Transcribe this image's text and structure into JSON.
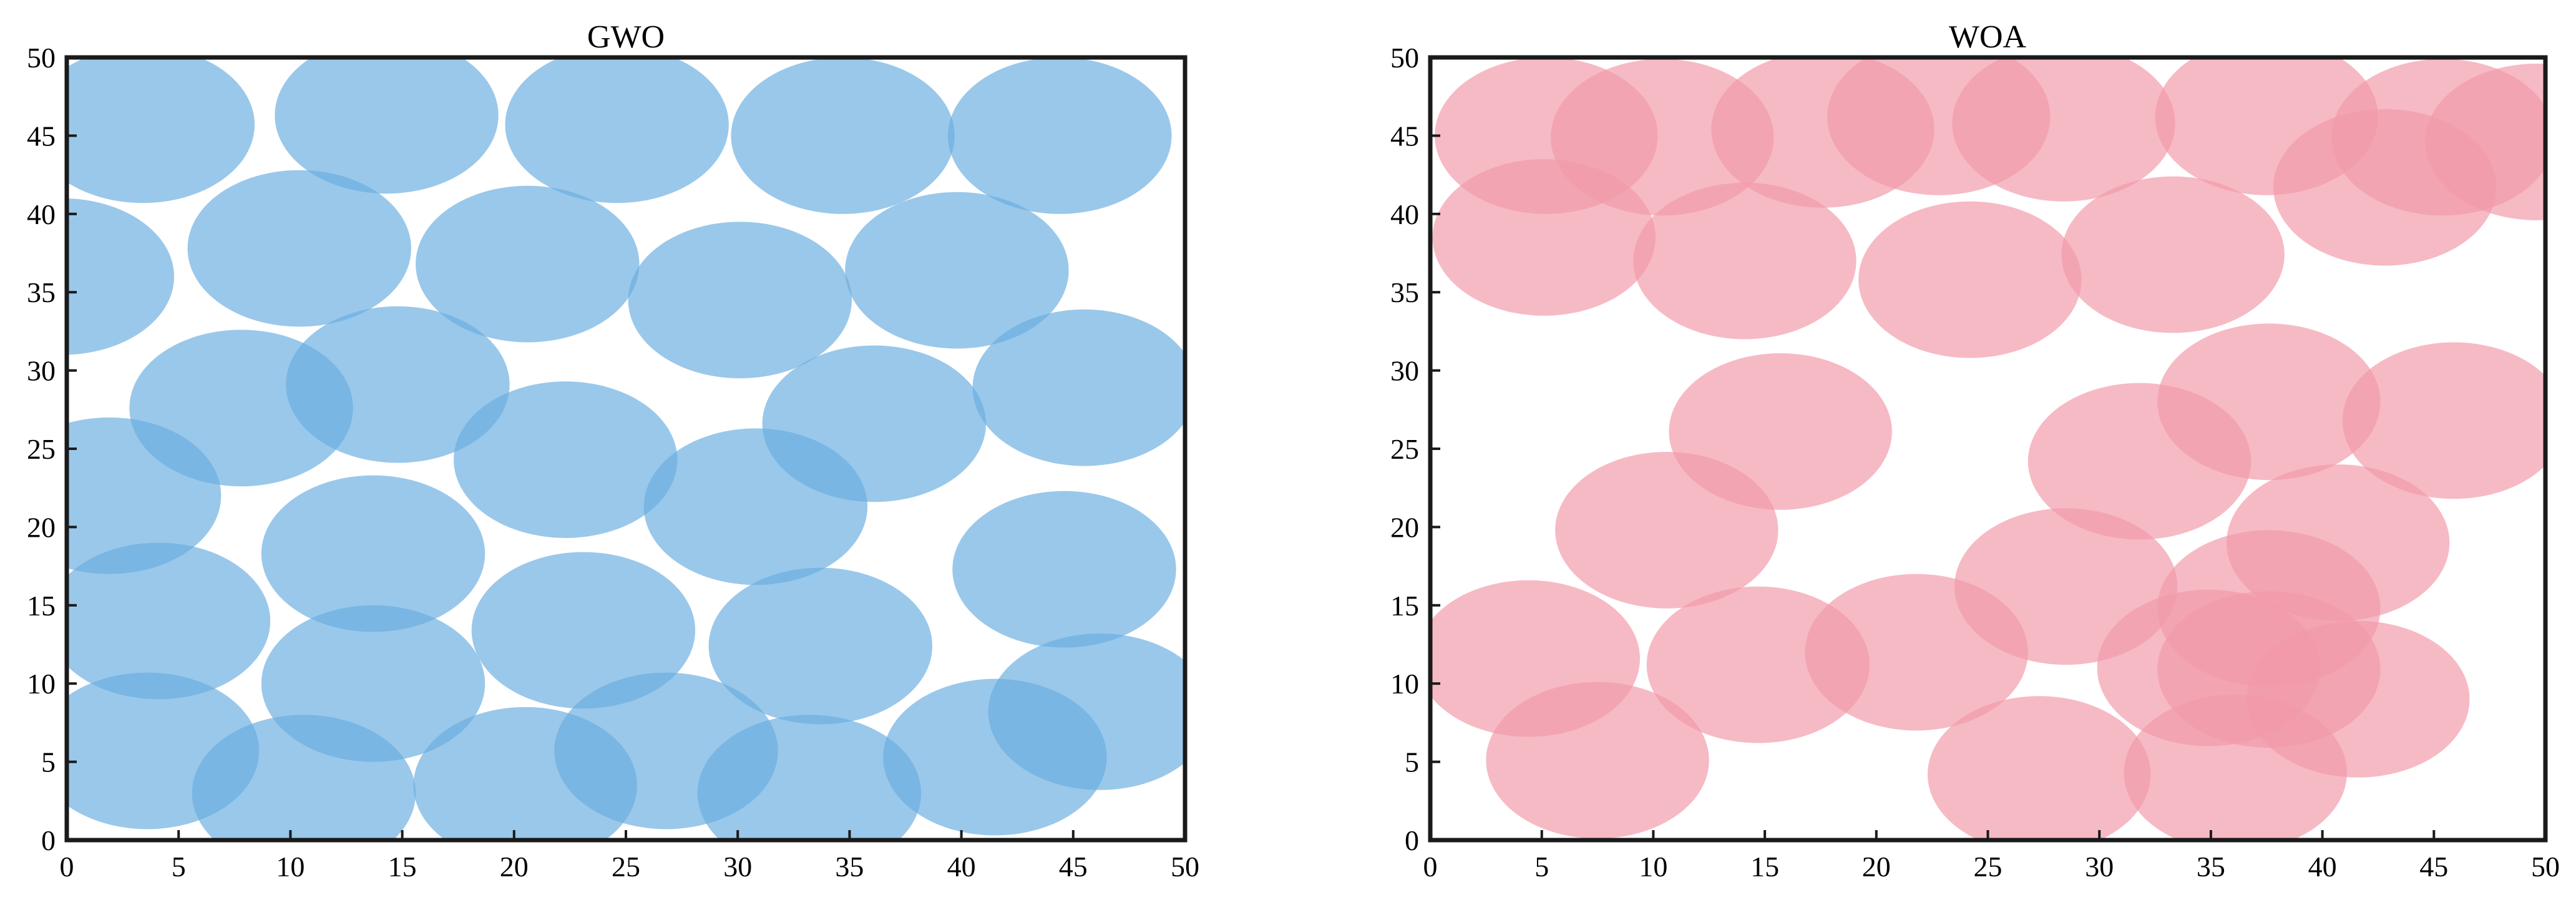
{
  "chart_data": [
    {
      "type": "scatter",
      "title": "GWO",
      "xlabel": "",
      "ylabel": "",
      "xlim": [
        0,
        50
      ],
      "ylim": [
        0,
        50
      ],
      "xticks": [
        "0",
        "5",
        "10",
        "15",
        "20",
        "25",
        "30",
        "35",
        "40",
        "45",
        "50"
      ],
      "yticks": [
        "0",
        "5",
        "10",
        "15",
        "20",
        "25",
        "30",
        "35",
        "40",
        "45",
        "50"
      ],
      "grid": false,
      "marker": "circle",
      "circle_radius": 5,
      "color": "#6aaee0",
      "opacity": 0.68,
      "points": [
        {
          "x": 3.4,
          "y": 45.7
        },
        {
          "x": 14.3,
          "y": 46.3
        },
        {
          "x": 24.6,
          "y": 45.7
        },
        {
          "x": 34.7,
          "y": 45.0
        },
        {
          "x": 44.4,
          "y": 45.0
        },
        {
          "x": -0.2,
          "y": 36.0
        },
        {
          "x": 10.4,
          "y": 37.8
        },
        {
          "x": 20.6,
          "y": 36.8
        },
        {
          "x": 30.1,
          "y": 34.5
        },
        {
          "x": 39.8,
          "y": 36.4
        },
        {
          "x": 7.8,
          "y": 27.6
        },
        {
          "x": 14.8,
          "y": 29.1
        },
        {
          "x": 22.3,
          "y": 24.3
        },
        {
          "x": 36.1,
          "y": 26.6
        },
        {
          "x": 45.5,
          "y": 28.9
        },
        {
          "x": 1.9,
          "y": 22.0
        },
        {
          "x": 30.8,
          "y": 21.3
        },
        {
          "x": 13.7,
          "y": 18.3
        },
        {
          "x": 44.6,
          "y": 17.3
        },
        {
          "x": 4.1,
          "y": 14.0
        },
        {
          "x": 23.1,
          "y": 13.4
        },
        {
          "x": 33.7,
          "y": 12.4
        },
        {
          "x": 13.7,
          "y": 10.0
        },
        {
          "x": 46.2,
          "y": 8.2
        },
        {
          "x": 3.6,
          "y": 5.7
        },
        {
          "x": 10.6,
          "y": 3.0
        },
        {
          "x": 20.5,
          "y": 3.5
        },
        {
          "x": 26.8,
          "y": 5.7
        },
        {
          "x": 33.2,
          "y": 3.0
        },
        {
          "x": 41.5,
          "y": 5.3
        }
      ]
    },
    {
      "type": "scatter",
      "title": "WOA",
      "xlabel": "",
      "ylabel": "",
      "xlim": [
        0,
        50
      ],
      "ylim": [
        0,
        50
      ],
      "xticks": [
        "0",
        "5",
        "10",
        "15",
        "20",
        "25",
        "30",
        "35",
        "40",
        "45",
        "50"
      ],
      "yticks": [
        "0",
        "5",
        "10",
        "15",
        "20",
        "25",
        "30",
        "35",
        "40",
        "45",
        "50"
      ],
      "grid": false,
      "marker": "circle",
      "circle_radius": 5,
      "color": "#f29aaa",
      "opacity": 0.68,
      "points": [
        {
          "x": 5.2,
          "y": 45.0
        },
        {
          "x": 10.4,
          "y": 44.9
        },
        {
          "x": 17.6,
          "y": 45.4
        },
        {
          "x": 22.8,
          "y": 46.2
        },
        {
          "x": 28.4,
          "y": 45.8
        },
        {
          "x": 37.5,
          "y": 46.2
        },
        {
          "x": 45.4,
          "y": 44.9
        },
        {
          "x": 49.6,
          "y": 44.6
        },
        {
          "x": 5.1,
          "y": 38.5
        },
        {
          "x": 14.1,
          "y": 37.0
        },
        {
          "x": 24.2,
          "y": 35.8
        },
        {
          "x": 33.3,
          "y": 37.4
        },
        {
          "x": 42.8,
          "y": 41.7
        },
        {
          "x": 37.6,
          "y": 28.0
        },
        {
          "x": 45.9,
          "y": 26.8
        },
        {
          "x": 15.7,
          "y": 26.1
        },
        {
          "x": 31.8,
          "y": 24.2
        },
        {
          "x": 10.6,
          "y": 19.8
        },
        {
          "x": 40.7,
          "y": 19.0
        },
        {
          "x": 28.5,
          "y": 16.2
        },
        {
          "x": 37.6,
          "y": 14.8
        },
        {
          "x": 4.4,
          "y": 11.6
        },
        {
          "x": 14.7,
          "y": 11.2
        },
        {
          "x": 21.8,
          "y": 12.0
        },
        {
          "x": 34.9,
          "y": 11.0
        },
        {
          "x": 37.6,
          "y": 10.9
        },
        {
          "x": 41.6,
          "y": 9.0
        },
        {
          "x": 7.5,
          "y": 5.1
        },
        {
          "x": 27.3,
          "y": 4.2
        },
        {
          "x": 36.1,
          "y": 4.3
        }
      ]
    }
  ]
}
